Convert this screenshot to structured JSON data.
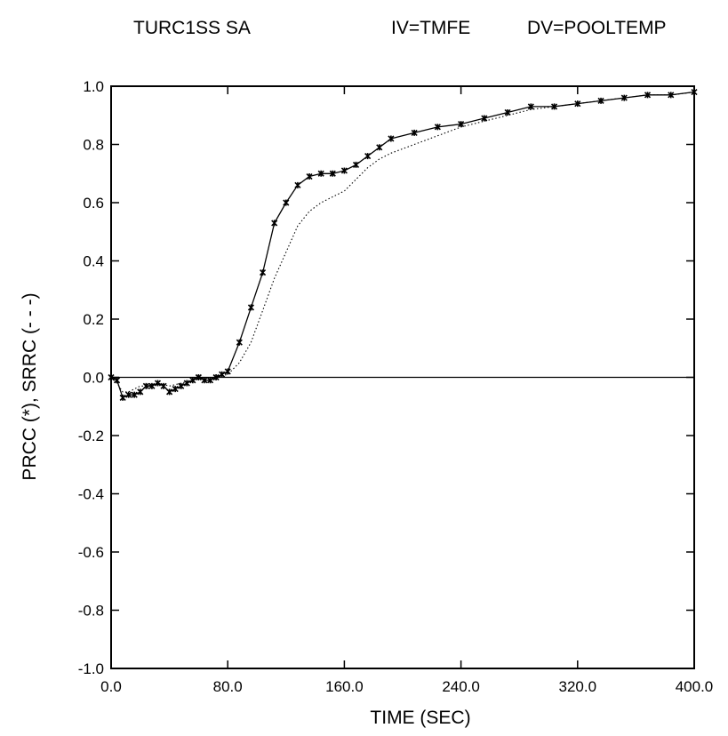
{
  "header": {
    "left": "TURC1SS SA",
    "middle": "IV=TMFE",
    "right": "DV=POOLTEMP"
  },
  "chart_data": {
    "type": "line",
    "title": "",
    "xlabel": "TIME (SEC)",
    "ylabel": "PRCC (*), SRRC (- - -)",
    "xlim": [
      0,
      400
    ],
    "ylim": [
      -1.0,
      1.0
    ],
    "xticks": [
      0,
      80,
      160,
      240,
      320,
      400
    ],
    "xtick_labels": [
      "0.0",
      "80.0",
      "160.0",
      "240.0",
      "320.0",
      "400.0"
    ],
    "yticks": [
      1.0,
      0.8,
      0.6,
      0.4,
      0.2,
      0.0,
      -0.2,
      -0.4,
      -0.6,
      -0.8,
      -1.0
    ],
    "ytick_labels": [
      "1.0",
      "0.8",
      "0.6",
      "0.4",
      "0.2",
      "0.0",
      "-0.2",
      "-0.4",
      "-0.6",
      "-0.8",
      "-1.0"
    ],
    "grid": false,
    "zero_line": true,
    "series": [
      {
        "name": "PRCC",
        "style": "solid-with-markers",
        "marker": "*",
        "color": "#000000",
        "x": [
          0,
          4,
          8,
          12,
          16,
          20,
          24,
          28,
          32,
          36,
          40,
          44,
          48,
          52,
          56,
          60,
          64,
          68,
          72,
          76,
          80,
          88,
          96,
          104,
          112,
          120,
          128,
          136,
          144,
          152,
          160,
          168,
          176,
          184,
          192,
          208,
          224,
          240,
          256,
          272,
          288,
          304,
          320,
          336,
          352,
          368,
          384,
          400
        ],
        "y": [
          0.0,
          -0.01,
          -0.07,
          -0.06,
          -0.06,
          -0.05,
          -0.03,
          -0.03,
          -0.02,
          -0.03,
          -0.05,
          -0.04,
          -0.03,
          -0.02,
          -0.01,
          0.0,
          -0.01,
          -0.01,
          0.0,
          0.01,
          0.02,
          0.12,
          0.24,
          0.36,
          0.53,
          0.6,
          0.66,
          0.69,
          0.7,
          0.7,
          0.71,
          0.73,
          0.76,
          0.79,
          0.82,
          0.84,
          0.86,
          0.87,
          0.89,
          0.91,
          0.93,
          0.93,
          0.94,
          0.95,
          0.96,
          0.97,
          0.97,
          0.98
        ]
      },
      {
        "name": "SRRC",
        "style": "dotted",
        "color": "#000000",
        "x": [
          0,
          4,
          8,
          12,
          16,
          20,
          24,
          32,
          40,
          48,
          56,
          64,
          72,
          80,
          88,
          96,
          104,
          112,
          120,
          128,
          136,
          144,
          152,
          160,
          168,
          176,
          184,
          192,
          208,
          224,
          240,
          256,
          272,
          288,
          304,
          320,
          336,
          352,
          368,
          384,
          400
        ],
        "y": [
          0.0,
          -0.02,
          -0.05,
          -0.05,
          -0.04,
          -0.03,
          -0.03,
          -0.02,
          -0.03,
          -0.02,
          -0.01,
          0.0,
          0.0,
          0.01,
          0.05,
          0.12,
          0.23,
          0.34,
          0.43,
          0.52,
          0.57,
          0.6,
          0.62,
          0.64,
          0.68,
          0.72,
          0.75,
          0.77,
          0.8,
          0.83,
          0.86,
          0.88,
          0.9,
          0.92,
          0.93,
          0.94,
          0.95,
          0.96,
          0.97,
          0.97,
          0.98
        ]
      }
    ]
  }
}
